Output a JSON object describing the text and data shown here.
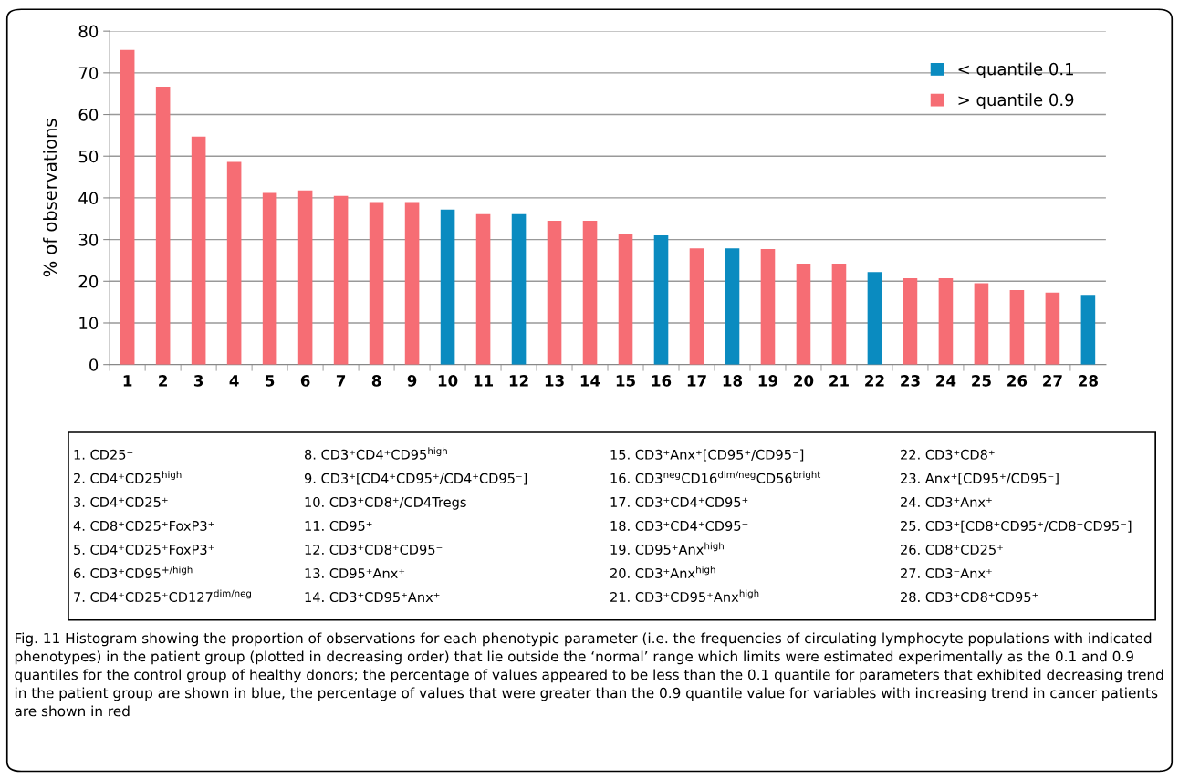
{
  "chart_data": {
    "type": "bar",
    "ylabel": "% of observations",
    "categories": [
      "1",
      "2",
      "3",
      "4",
      "5",
      "6",
      "7",
      "8",
      "9",
      "10",
      "11",
      "12",
      "13",
      "14",
      "15",
      "16",
      "17",
      "18",
      "19",
      "20",
      "21",
      "22",
      "23",
      "24",
      "25",
      "26",
      "27",
      "28"
    ],
    "series": [
      {
        "name": "< quantile 0.1",
        "color": "#0a8bc0",
        "values": [
          null,
          null,
          null,
          null,
          null,
          null,
          null,
          null,
          null,
          37.2,
          null,
          36.1,
          null,
          null,
          null,
          31,
          null,
          27.9,
          null,
          null,
          null,
          22.2,
          null,
          null,
          null,
          null,
          null,
          16.7
        ]
      },
      {
        "name": "> quantile 0.9",
        "color": "#f66d74",
        "values": [
          75.5,
          66.7,
          54.7,
          48.6,
          41.2,
          41.8,
          40.5,
          39,
          39,
          null,
          36.1,
          null,
          34.5,
          34.5,
          31.2,
          null,
          27.9,
          null,
          27.7,
          24.2,
          24.2,
          null,
          20.7,
          20.7,
          19.5,
          17.9,
          17.3,
          null
        ]
      }
    ],
    "ylim": [
      0,
      80
    ],
    "yticks": [
      0,
      10,
      20,
      30,
      40,
      50,
      60,
      70,
      80
    ],
    "grid": "y",
    "legend": "top right",
    "annotations": [
      "1. CD25⁺",
      "2. CD4⁺CD25$^{high}$",
      "3. CD4⁺CD25⁺",
      "4. CD8⁺CD25⁺FoxP3⁺",
      "5. CD4⁺CD25⁺FoxP3⁺",
      "6. CD3⁺CD95$^{+/high}$",
      "7. CD4⁺CD25⁺CD127$^{dim/neg}$",
      "8. CD3⁺CD4⁺CD95$^{high}$",
      "9. CD3⁺[CD4⁺CD95⁺/CD4⁺CD95⁻]",
      "10. CD3⁺CD8⁺/CD4Tregs",
      "11. CD95⁺",
      "12. CD3⁺CD8⁺CD95⁻",
      "13. CD95⁺Anx⁺",
      "14. CD3⁺CD95⁺Anx⁺",
      "15. CD3⁺Anx⁺[CD95⁺/CD95⁻]",
      "16. CD3$^{neg}$CD16$^{dim/neg}$CD56$^{bright}$",
      "17. CD3⁺CD4⁺CD95⁺",
      "18. CD3⁺CD4⁺CD95⁻",
      "19. CD95⁺Anx$^{high}$",
      "20. CD3⁺Anx$^{high}$",
      "21. CD3⁺CD95⁺Anx$^{high}$",
      "22. CD3⁺CD8⁺",
      "23. Anx⁺[CD95⁺/CD95⁻]",
      "24. CD3⁺Anx⁺",
      "25. CD3⁺[CD8⁺CD95⁺/CD8⁺CD95⁻]",
      "26. CD8⁺CD25⁺",
      "27. CD3⁻Anx⁺",
      "28. CD3⁺CD8⁺CD95⁺",
      "Fig. 11 Histogram showing the proportion of observations for each phenotypic parameter (i.e. the frequencies of circulating lymphocyte populations with indicated phenotypes) in the patient group (plotted in decreasing order) that lie outside the ‘normal’ range which limits were estimated experimentally as the 0.1 and 0.9 quantiles for the control group of healthy donors; the percentage of values appeared to be less than the 0.1 quantile for parameters that exhibited decreasing trend in the patient group are shown in blue, the percentage of values that were greater than the 0.9 quantile value for variables with increasing trend in cancer patients are shown in red"
    ]
  }
}
